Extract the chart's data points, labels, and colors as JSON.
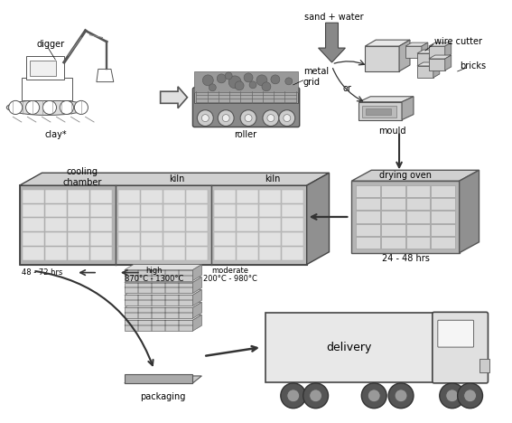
{
  "bg_color": "#ffffff",
  "elements": {
    "digger_label": "digger",
    "clay_label": "clay*",
    "roller_label": "roller",
    "metal_grid_label": "metal\ngrid",
    "sand_water_label": "sand + water",
    "or_label": "or",
    "wire_cutter_label": "wire cutter",
    "bricks_label": "bricks",
    "mould_label": "mould",
    "drying_oven_label": "drying oven",
    "time_drying": "24 - 48 hrs",
    "cooling_chamber_label": "cooling\nchamber",
    "kiln_label1": "kiln",
    "kiln_label2": "kiln",
    "time_cooling": "48 - 72 hrs",
    "high_label": "high",
    "high_temp": "870°C - 1300°C",
    "moderate_label": "moderate",
    "moderate_temp": "200°C - 980°C",
    "packaging_label": "packaging",
    "delivery_label": "delivery"
  },
  "colors": {
    "text": "#000000",
    "bg": "#ffffff",
    "dark_gray": "#666666",
    "mid_gray": "#999999",
    "light_gray": "#cccccc",
    "lighter_gray": "#e0e0e0",
    "white": "#ffffff",
    "outline": "#444444"
  },
  "font_sizes": {
    "label": 7.0,
    "small": 6.0
  }
}
